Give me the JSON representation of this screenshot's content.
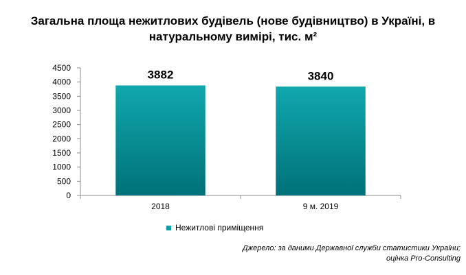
{
  "title_line1": "Загальна площа нежитлових будівель (нове будівництво) в Україні, в",
  "title_line2": "натуральному вимірі, тис. м²",
  "source_line1": "Джерело: за даними Державної служби статистики України;",
  "source_line2": "оцінка Pro-Consulting",
  "chart_data": {
    "type": "bar",
    "categories": [
      "2018",
      "9 м. 2019"
    ],
    "series": [
      {
        "name": "Нежитлові  приміщення",
        "values": [
          3882,
          3840
        ],
        "color": "#0e9ea4"
      }
    ],
    "ylim": [
      0,
      4500
    ],
    "yticks": [
      "0",
      "500",
      "1000",
      "1500",
      "2000",
      "2500",
      "3000",
      "3500",
      "4000",
      "4500"
    ],
    "data_labels": [
      "3882",
      "3840"
    ],
    "xlabel": "",
    "ylabel": "",
    "legend_position": "bottom",
    "grid": false
  }
}
